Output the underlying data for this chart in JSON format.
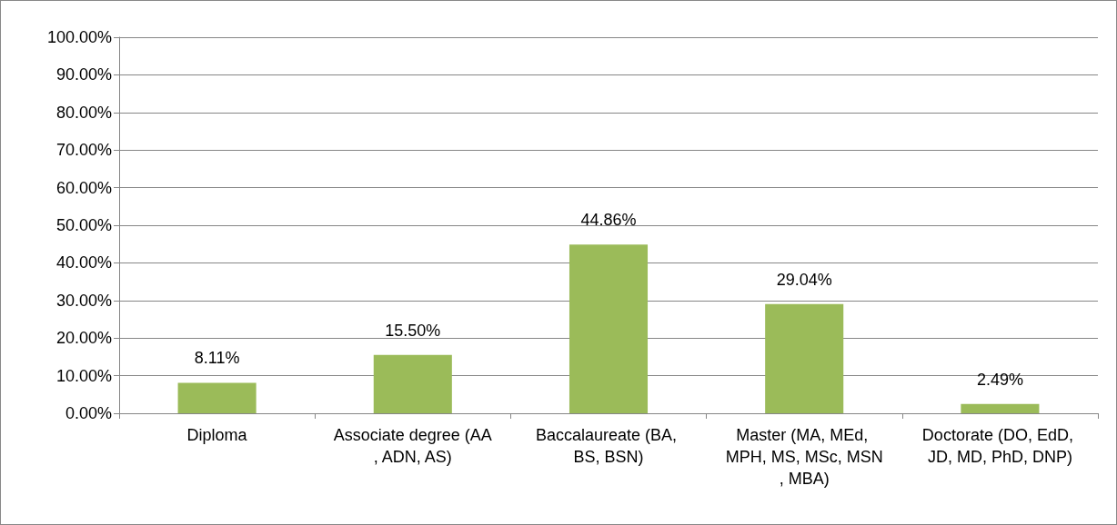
{
  "chart_data": {
    "type": "bar",
    "categories": [
      "Diploma",
      "Associate degree (AA, ADN, AS)",
      "Baccalaureate (BA, BS, BSN)",
      "Master (MA, MEd, MPH, MS, MSc, MSN, MBA)",
      "Doctorate (DO, EdD, JD, MD, PhD, DNP)"
    ],
    "values": [
      8.11,
      15.5,
      44.86,
      29.04,
      2.49
    ],
    "value_labels": [
      "8.11%",
      "15.50%",
      "44.86%",
      "29.04%",
      "2.49%"
    ],
    "color": "#9bbb59",
    "ylim": [
      0,
      100
    ],
    "yticks": [
      {
        "value": 0,
        "label": "0.00%"
      },
      {
        "value": 10,
        "label": "10.00%"
      },
      {
        "value": 20,
        "label": "20.00%"
      },
      {
        "value": 30,
        "label": "30.00%"
      },
      {
        "value": 40,
        "label": "40.00%"
      },
      {
        "value": 50,
        "label": "50.00%"
      },
      {
        "value": 60,
        "label": "60.00%"
      },
      {
        "value": 70,
        "label": "70.00%"
      },
      {
        "value": 80,
        "label": "80.00%"
      },
      {
        "value": 90,
        "label": "90.00%"
      },
      {
        "value": 100,
        "label": "100.00%"
      }
    ],
    "grid": "y"
  }
}
